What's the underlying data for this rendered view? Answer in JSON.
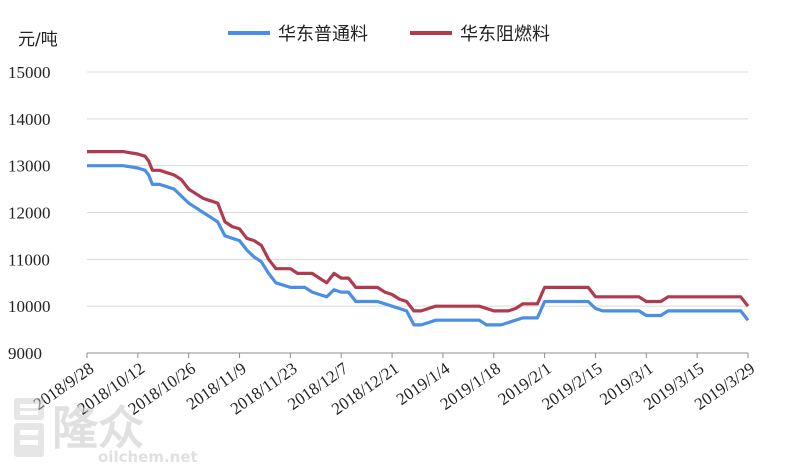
{
  "chart_data": {
    "type": "line",
    "ylabel": "元/吨",
    "ylim": [
      9000,
      15000
    ],
    "yticks": [
      9000,
      10000,
      11000,
      12000,
      13000,
      14000,
      15000
    ],
    "grid": true,
    "legend_position": "top-center",
    "xtick_labels": [
      "2018/9/28",
      "2018/10/12",
      "2018/10/26",
      "2018/11/9",
      "2018/11/23",
      "2018/12/7",
      "2018/12/21",
      "2019/1/4",
      "2019/1/18",
      "2019/2/1",
      "2019/2/15",
      "2019/3/1",
      "2019/3/15",
      "2019/3/29"
    ],
    "series": [
      {
        "name": "华东普通料",
        "color": "#4a8ee6",
        "x": [
          "2018/9/28",
          "2018/10/8",
          "2018/10/12",
          "2018/10/14",
          "2018/10/15",
          "2018/10/16",
          "2018/10/18",
          "2018/10/20",
          "2018/10/22",
          "2018/10/24",
          "2018/10/26",
          "2018/10/28",
          "2018/10/30",
          "2018/11/1",
          "2018/11/3",
          "2018/11/5",
          "2018/11/7",
          "2018/11/9",
          "2018/11/11",
          "2018/11/13",
          "2018/11/15",
          "2018/11/17",
          "2018/11/19",
          "2018/11/23",
          "2018/11/25",
          "2018/11/27",
          "2018/11/29",
          "2018/12/1",
          "2018/12/3",
          "2018/12/5",
          "2018/12/7",
          "2018/12/9",
          "2018/12/11",
          "2018/12/13",
          "2018/12/15",
          "2018/12/17",
          "2018/12/19",
          "2018/12/21",
          "2018/12/23",
          "2018/12/25",
          "2018/12/27",
          "2018/12/29",
          "2018/12/31",
          "2019/1/2",
          "2019/1/4",
          "2019/1/6",
          "2019/1/8",
          "2019/1/10",
          "2019/1/14",
          "2019/1/16",
          "2019/1/18",
          "2019/1/20",
          "2019/1/22",
          "2019/1/24",
          "2019/1/26",
          "2019/1/28",
          "2019/1/30",
          "2019/2/1",
          "2019/2/3",
          "2019/2/13",
          "2019/2/15",
          "2019/2/17",
          "2019/2/21",
          "2019/2/27",
          "2019/3/1",
          "2019/3/5",
          "2019/3/7",
          "2019/3/15",
          "2019/3/27",
          "2019/3/29"
        ],
        "values": [
          13000,
          13000,
          12950,
          12900,
          12800,
          12600,
          12600,
          12550,
          12500,
          12350,
          12200,
          12100,
          12000,
          11900,
          11800,
          11500,
          11450,
          11400,
          11200,
          11050,
          10950,
          10700,
          10500,
          10400,
          10400,
          10400,
          10300,
          10250,
          10200,
          10350,
          10300,
          10300,
          10100,
          10100,
          10100,
          10100,
          10050,
          10000,
          9950,
          9900,
          9600,
          9600,
          9650,
          9700,
          9700,
          9700,
          9700,
          9700,
          9700,
          9600,
          9600,
          9600,
          9650,
          9700,
          9750,
          9750,
          9750,
          10100,
          10100,
          10100,
          9950,
          9900,
          9900,
          9900,
          9800,
          9800,
          9900,
          9900,
          9900,
          9700
        ]
      },
      {
        "name": "华东阻燃料",
        "color": "#b03a4e",
        "x": [
          "2018/9/28",
          "2018/10/8",
          "2018/10/12",
          "2018/10/14",
          "2018/10/15",
          "2018/10/16",
          "2018/10/18",
          "2018/10/20",
          "2018/10/22",
          "2018/10/24",
          "2018/10/26",
          "2018/10/28",
          "2018/10/30",
          "2018/11/1",
          "2018/11/3",
          "2018/11/5",
          "2018/11/7",
          "2018/11/9",
          "2018/11/11",
          "2018/11/13",
          "2018/11/15",
          "2018/11/17",
          "2018/11/19",
          "2018/11/23",
          "2018/11/25",
          "2018/11/27",
          "2018/11/29",
          "2018/12/1",
          "2018/12/3",
          "2018/12/5",
          "2018/12/7",
          "2018/12/9",
          "2018/12/11",
          "2018/12/13",
          "2018/12/15",
          "2018/12/17",
          "2018/12/19",
          "2018/12/21",
          "2018/12/23",
          "2018/12/25",
          "2018/12/27",
          "2018/12/29",
          "2018/12/31",
          "2019/1/2",
          "2019/1/4",
          "2019/1/6",
          "2019/1/8",
          "2019/1/10",
          "2019/1/14",
          "2019/1/16",
          "2019/1/18",
          "2019/1/20",
          "2019/1/22",
          "2019/1/24",
          "2019/1/26",
          "2019/1/28",
          "2019/1/30",
          "2019/2/1",
          "2019/2/3",
          "2019/2/13",
          "2019/2/15",
          "2019/2/17",
          "2019/2/21",
          "2019/2/27",
          "2019/3/1",
          "2019/3/5",
          "2019/3/7",
          "2019/3/15",
          "2019/3/27",
          "2019/3/29"
        ],
        "values": [
          13300,
          13300,
          13250,
          13200,
          13100,
          12900,
          12900,
          12850,
          12800,
          12700,
          12500,
          12400,
          12300,
          12250,
          12200,
          11800,
          11700,
          11650,
          11450,
          11400,
          11300,
          11000,
          10800,
          10800,
          10700,
          10700,
          10700,
          10600,
          10500,
          10700,
          10600,
          10600,
          10400,
          10400,
          10400,
          10400,
          10300,
          10250,
          10150,
          10100,
          9900,
          9900,
          9950,
          10000,
          10000,
          10000,
          10000,
          10000,
          10000,
          9950,
          9900,
          9900,
          9900,
          9950,
          10050,
          10050,
          10050,
          10400,
          10400,
          10400,
          10200,
          10200,
          10200,
          10200,
          10100,
          10100,
          10200,
          10200,
          10200,
          10000
        ]
      }
    ]
  },
  "watermark": {
    "brand": "隆众",
    "site": "oilchem.net"
  }
}
